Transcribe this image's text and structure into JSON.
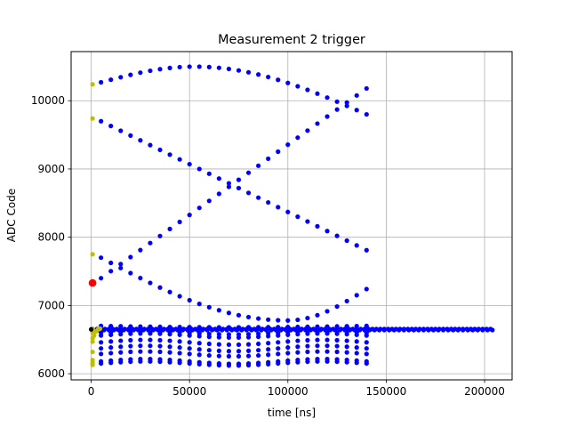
{
  "chart_data": {
    "type": "scatter",
    "title": "Measurement 2 trigger",
    "xlabel": "time [ns]",
    "ylabel": "ADC Code",
    "xlim": [
      -10200,
      214000
    ],
    "ylim": [
      5910,
      10720
    ],
    "xticks": [
      0,
      50000,
      100000,
      150000,
      200000
    ],
    "yticks": [
      6000,
      7000,
      8000,
      9000,
      10000
    ],
    "grid": true,
    "colors": {
      "blue": "#0000ff",
      "olive": "#bfbf00",
      "red": "#ff0000",
      "black": "#000000",
      "grid": "#b0b0b0"
    },
    "series": [
      {
        "color": "#0000ff",
        "curves": [
          {
            "x0": 5000,
            "x1": 140000,
            "step": 5000,
            "kind": "arch",
            "a": 10270,
            "peak": 10500,
            "peak_x": 52500,
            "b": 9800
          },
          {
            "x0": 5000,
            "x1": 140000,
            "step": 5000,
            "kind": "linear",
            "a": 9700,
            "b": 7810
          },
          {
            "x0": 5000,
            "x1": 140000,
            "step": 5000,
            "kind": "linear",
            "a": 7400,
            "b": 10180
          },
          {
            "x0": 5000,
            "x1": 140000,
            "step": 5000,
            "kind": "arch",
            "a": 7700,
            "peak": 6780,
            "peak_x": 100000,
            "b": 7240
          },
          {
            "x0": 5000,
            "x1": 140000,
            "step": 5000,
            "kind": "wave",
            "a": 6600,
            "amp": 25
          },
          {
            "x0": 5000,
            "x1": 140000,
            "step": 5000,
            "kind": "wave",
            "a": 6560,
            "amp": 30
          },
          {
            "x0": 5000,
            "x1": 140000,
            "step": 5000,
            "kind": "wave",
            "a": 6460,
            "amp": 35
          },
          {
            "x0": 5000,
            "x1": 140000,
            "step": 5000,
            "kind": "wave",
            "a": 6370,
            "amp": 40
          },
          {
            "x0": 5000,
            "x1": 140000,
            "step": 5000,
            "kind": "wave",
            "a": 6290,
            "amp": 35
          },
          {
            "x0": 5000,
            "x1": 140000,
            "step": 5000,
            "kind": "wave",
            "a": 6180,
            "amp": 35
          },
          {
            "x0": 5000,
            "x1": 140000,
            "step": 5000,
            "kind": "wave",
            "a": 6150,
            "amp": 30
          },
          {
            "x0": 5000,
            "x1": 140000,
            "step": 5000,
            "kind": "arch",
            "a": 6700,
            "peak": 6680,
            "peak_x": 70000,
            "b": 6700
          },
          {
            "x0": 3000,
            "x1": 204000,
            "step": 2000,
            "kind": "linear",
            "a": 6655,
            "b": 6655
          },
          {
            "x0": 4000,
            "x1": 204000,
            "step": 2500,
            "kind": "linear",
            "a": 6640,
            "b": 6640
          }
        ]
      },
      {
        "color": "#bfbf00",
        "points": [
          [
            700,
            10240
          ],
          [
            700,
            9740
          ],
          [
            700,
            7750
          ],
          [
            700,
            6660
          ],
          [
            700,
            6600
          ],
          [
            700,
            6520
          ],
          [
            700,
            6470
          ],
          [
            700,
            6320
          ],
          [
            700,
            6200
          ],
          [
            700,
            6160
          ],
          [
            700,
            6130
          ],
          [
            1500,
            6560
          ],
          [
            2500,
            6620
          ],
          [
            3500,
            6650
          ],
          [
            4500,
            6660
          ]
        ]
      },
      {
        "color": "#ff0000",
        "points": [
          [
            700,
            7330
          ]
        ],
        "size": "large"
      },
      {
        "color": "#000000",
        "points": [
          [
            0,
            6650
          ]
        ]
      }
    ]
  }
}
